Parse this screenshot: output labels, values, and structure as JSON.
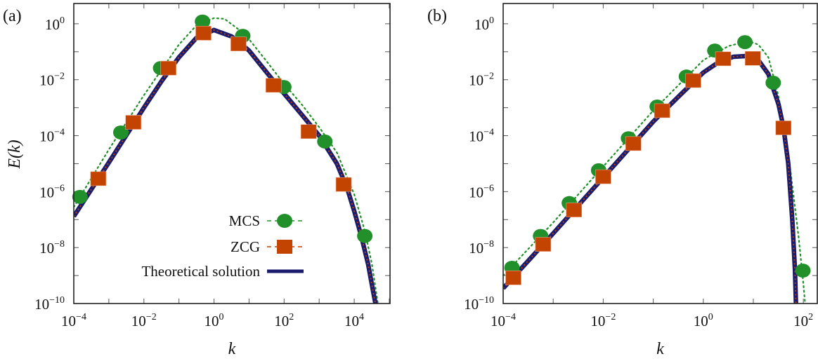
{
  "colors": {
    "mcs": "#22902a",
    "zcg": "#c24400",
    "theory": "#1b1c6e",
    "axis": "#222222",
    "tick": "#555555"
  },
  "legend": {
    "placement": "lower-right of panel (a)",
    "entries": [
      "MCS",
      "ZCG",
      "Theoretical solution"
    ]
  },
  "chart_data": [
    {
      "type": "line",
      "panel_label": "(a)",
      "xlabel": "k",
      "ylabel": "E(k)",
      "xscale": "log",
      "yscale": "log",
      "xlim": [
        0.0001,
        105000.0
      ],
      "ylim": [
        1e-10,
        5.3
      ],
      "xticks": [
        0.0001,
        0.01,
        1,
        100.0,
        10000.0
      ],
      "xtick_labels": [
        [
          "10",
          "−4"
        ],
        [
          "10",
          "−2"
        ],
        [
          "10",
          "0"
        ],
        [
          "10",
          "2"
        ],
        [
          "10",
          "4"
        ]
      ],
      "yticks": [
        1e-10,
        1e-08,
        1e-06,
        0.0001,
        0.01,
        1
      ],
      "ytick_labels": [
        [
          "10",
          "−10"
        ],
        [
          "10",
          "−8"
        ],
        [
          "10",
          "−6"
        ],
        [
          "10",
          "−4"
        ],
        [
          "10",
          "−2"
        ],
        [
          "10",
          "0"
        ]
      ],
      "grid": false,
      "series": [
        {
          "name": "MCS",
          "style": "dotted",
          "marker": "circle",
          "curve": [
            [
              0.0001,
              2.8e-07
            ],
            [
              0.001,
              3.2e-05
            ],
            [
              0.01,
              0.0028
            ],
            [
              0.1,
              0.18
            ],
            [
              0.32,
              0.89
            ],
            [
              1,
              1.6
            ],
            [
              2,
              1.5
            ],
            [
              5,
              0.63
            ],
            [
              10,
              0.28
            ],
            [
              32,
              0.045
            ],
            [
              100,
              0.0071
            ],
            [
              320,
              0.0013
            ],
            [
              1000,
              0.0002
            ],
            [
              3200,
              2.5e-05
            ],
            [
              10000.0,
              7.9e-07
            ],
            [
              20000.0,
              4e-08
            ],
            [
              32000.0,
              2.5e-09
            ],
            [
              50000.0,
              6.3e-11
            ]
          ],
          "points": [
            [
              0.00015,
              6.5e-07
            ],
            [
              0.0022,
              0.00013
            ],
            [
              0.03,
              0.026
            ],
            [
              0.47,
              1.2
            ],
            [
              6.6,
              0.37
            ],
            [
              98,
              0.0055
            ],
            [
              1450,
              6.2e-05
            ],
            [
              20000.0,
              2.6e-08
            ]
          ]
        },
        {
          "name": "ZCG",
          "style": "dashed",
          "marker": "square",
          "curve": [
            [
              0.0001,
              1.3e-07
            ],
            [
              0.001,
              1.1e-05
            ],
            [
              0.01,
              0.001
            ],
            [
              0.032,
              0.0089
            ],
            [
              0.1,
              0.063
            ],
            [
              0.32,
              0.32
            ],
            [
              1,
              0.6
            ],
            [
              3.2,
              0.35
            ],
            [
              10,
              0.11
            ],
            [
              32,
              0.018
            ],
            [
              100,
              0.0032
            ],
            [
              320,
              0.00056
            ],
            [
              1000,
              0.0001
            ],
            [
              3200,
              1e-05
            ],
            [
              6300,
              1.3e-06
            ],
            [
              10000.0,
              2e-07
            ],
            [
              16000.0,
              2.5e-08
            ],
            [
              25000.0,
              2.5e-09
            ],
            [
              35000.0,
              2.5e-10
            ],
            [
              45000.0,
              5e-11
            ]
          ],
          "points": [
            [
              0.0005,
              2.9e-06
            ],
            [
              0.005,
              0.0003
            ],
            [
              0.05,
              0.026
            ],
            [
              0.5,
              0.46
            ],
            [
              5,
              0.19
            ],
            [
              50,
              0.0063
            ],
            [
              500,
              0.00014
            ],
            [
              5000,
              1.8e-06
            ]
          ]
        },
        {
          "name": "Theoretical solution",
          "style": "solid",
          "marker": "none",
          "curve": [
            [
              0.0001,
              1.3e-07
            ],
            [
              0.001,
              1.1e-05
            ],
            [
              0.01,
              0.001
            ],
            [
              0.032,
              0.0089
            ],
            [
              0.1,
              0.063
            ],
            [
              0.32,
              0.32
            ],
            [
              1,
              0.6
            ],
            [
              3.2,
              0.35
            ],
            [
              10,
              0.11
            ],
            [
              32,
              0.018
            ],
            [
              100,
              0.0032
            ],
            [
              320,
              0.00056
            ],
            [
              1000,
              0.0001
            ],
            [
              3200,
              1e-05
            ],
            [
              6300,
              1.3e-06
            ],
            [
              10000.0,
              2e-07
            ],
            [
              16000.0,
              2.5e-08
            ],
            [
              25000.0,
              2.5e-09
            ],
            [
              35000.0,
              2.5e-10
            ],
            [
              45000.0,
              5e-11
            ]
          ]
        }
      ]
    },
    {
      "type": "line",
      "panel_label": "(b)",
      "xlabel": "k",
      "ylabel": "",
      "xscale": "log",
      "yscale": "log",
      "xlim": [
        0.0001,
        190
      ],
      "ylim": [
        1e-10,
        5.3
      ],
      "xticks": [
        0.0001,
        0.01,
        1,
        100.0
      ],
      "xtick_labels": [
        [
          "10",
          "−4"
        ],
        [
          "10",
          "−2"
        ],
        [
          "10",
          "0"
        ],
        [
          "10",
          "2"
        ]
      ],
      "yticks": [
        1e-10,
        1e-08,
        1e-06,
        0.0001,
        0.01,
        1
      ],
      "ytick_labels": [
        [
          "10",
          "−10"
        ],
        [
          "10",
          "−8"
        ],
        [
          "10",
          "−6"
        ],
        [
          "10",
          "−4"
        ],
        [
          "10",
          "−2"
        ],
        [
          "10",
          "0"
        ]
      ],
      "grid": false,
      "series": [
        {
          "name": "MCS",
          "style": "dotted",
          "marker": "circle",
          "curve": [
            [
              0.0001,
              1e-09
            ],
            [
              0.001,
              7.9e-08
            ],
            [
              0.01,
              7.9e-06
            ],
            [
              0.1,
              0.00079
            ],
            [
              1,
              0.05
            ],
            [
              3.2,
              0.16
            ],
            [
              8,
              0.24
            ],
            [
              12.6,
              0.18
            ],
            [
              20,
              0.063
            ],
            [
              32,
              0.0025
            ],
            [
              50,
              2.5e-05
            ],
            [
              80,
              2.5e-08
            ],
            [
              100,
              5e-10
            ],
            [
              112,
              5e-11
            ]
          ],
          "points": [
            [
              0.00015,
              1.9e-09
            ],
            [
              0.00056,
              2.6e-08
            ],
            [
              0.0021,
              3.9e-07
            ],
            [
              0.0081,
              5.8e-06
            ],
            [
              0.032,
              8.1e-05
            ],
            [
              0.12,
              0.0011
            ],
            [
              0.46,
              0.013
            ],
            [
              1.7,
              0.11
            ],
            [
              6.8,
              0.22
            ],
            [
              25,
              0.0078
            ],
            [
              98,
              1.5e-09
            ]
          ]
        },
        {
          "name": "ZCG",
          "style": "dashed",
          "marker": "square",
          "curve": [
            [
              0.0001,
              3.5e-10
            ],
            [
              0.001,
              3.2e-08
            ],
            [
              0.01,
              3.2e-06
            ],
            [
              0.1,
              0.00032
            ],
            [
              0.32,
              0.0025
            ],
            [
              1,
              0.018
            ],
            [
              2,
              0.042
            ],
            [
              4,
              0.066
            ],
            [
              8,
              0.071
            ],
            [
              12.6,
              0.05
            ],
            [
              20,
              0.016
            ],
            [
              32,
              0.0013
            ],
            [
              40,
              0.0002
            ],
            [
              50,
              1e-05
            ],
            [
              60,
              1e-07
            ],
            [
              68,
              1.6e-09
            ],
            [
              72,
              5e-11
            ]
          ],
          "points": [
            [
              0.00016,
              8.3e-10
            ],
            [
              0.00063,
              1.3e-08
            ],
            [
              0.0026,
              2.2e-07
            ],
            [
              0.01,
              3.4e-06
            ],
            [
              0.04,
              5.2e-05
            ],
            [
              0.15,
              0.00078
            ],
            [
              0.63,
              0.0093
            ],
            [
              2.5,
              0.056
            ],
            [
              9.8,
              0.058
            ],
            [
              40,
              0.00019
            ]
          ]
        },
        {
          "name": "Theoretical solution",
          "style": "solid",
          "marker": "none",
          "curve": [
            [
              0.0001,
              3.5e-10
            ],
            [
              0.001,
              3.2e-08
            ],
            [
              0.01,
              3.2e-06
            ],
            [
              0.1,
              0.00032
            ],
            [
              0.32,
              0.0025
            ],
            [
              1,
              0.018
            ],
            [
              2,
              0.042
            ],
            [
              4,
              0.066
            ],
            [
              8,
              0.071
            ],
            [
              12.6,
              0.05
            ],
            [
              20,
              0.016
            ],
            [
              32,
              0.0013
            ],
            [
              40,
              0.0002
            ],
            [
              50,
              1e-05
            ],
            [
              60,
              1e-07
            ],
            [
              68,
              1.6e-09
            ],
            [
              72,
              5e-11
            ]
          ]
        }
      ]
    }
  ]
}
